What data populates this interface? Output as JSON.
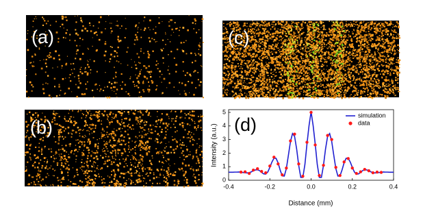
{
  "panels": [
    {
      "label": "(a)"
    },
    {
      "label": "(b)"
    },
    {
      "label": "(c)"
    }
  ],
  "chart_data": {
    "type": "line",
    "label": "(d)",
    "x_label": "Distance (mm)",
    "y_label": "Intensity (a.u.)",
    "xlim": [
      -0.4,
      0.4
    ],
    "xticks": [
      -0.4,
      -0.2,
      {
        "value": 0,
        "label": "0.0"
      },
      0.2,
      0.4
    ],
    "ylim": [
      0,
      5.2
    ],
    "yticks": [
      0,
      1,
      2,
      3,
      4,
      5
    ],
    "legend": "upper right",
    "series": [
      {
        "name": "simulation",
        "color": "#1f1fd0",
        "kind": "line",
        "x": [
          -0.4,
          -0.39,
          -0.38,
          -0.37,
          -0.36,
          -0.35,
          -0.34,
          -0.33,
          -0.32,
          -0.31,
          -0.3,
          -0.29,
          -0.28,
          -0.27,
          -0.26,
          -0.25,
          -0.24,
          -0.23,
          -0.22,
          -0.21,
          -0.2,
          -0.19,
          -0.18,
          -0.17,
          -0.16,
          -0.15,
          -0.14,
          -0.13,
          -0.12,
          -0.11,
          -0.1,
          -0.09,
          -0.08,
          -0.07,
          -0.06,
          -0.05,
          -0.04,
          -0.03,
          -0.02,
          -0.01,
          0,
          0.01,
          0.02,
          0.03,
          0.04,
          0.05,
          0.06,
          0.07,
          0.08,
          0.09,
          0.1,
          0.11,
          0.12,
          0.13,
          0.14,
          0.15,
          0.16,
          0.17,
          0.18,
          0.19,
          0.2,
          0.21,
          0.22,
          0.23,
          0.24,
          0.25,
          0.26,
          0.27,
          0.28,
          0.29,
          0.3,
          0.31,
          0.32,
          0.33,
          0.34,
          0.35,
          0.36,
          0.37,
          0.38,
          0.39,
          0.4
        ],
        "values": [
          0.59,
          0.59,
          0.59,
          0.6,
          0.6,
          0.61,
          0.59,
          0.57,
          0.55,
          0.54,
          0.56,
          0.62,
          0.7,
          0.76,
          0.77,
          0.71,
          0.58,
          0.47,
          0.45,
          0.61,
          0.95,
          1.34,
          1.62,
          1.62,
          1.28,
          0.75,
          0.32,
          0.31,
          0.86,
          1.84,
          2.86,
          3.44,
          3.23,
          2.3,
          1.09,
          0.21,
          0.21,
          1.16,
          2.67,
          4.02,
          5.05,
          4.02,
          2.67,
          1.16,
          0.21,
          0.21,
          1.09,
          2.3,
          3.23,
          3.44,
          2.86,
          1.84,
          0.86,
          0.31,
          0.32,
          0.75,
          1.28,
          1.62,
          1.62,
          1.34,
          0.95,
          0.61,
          0.45,
          0.47,
          0.58,
          0.71,
          0.77,
          0.76,
          0.7,
          0.62,
          0.56,
          0.54,
          0.55,
          0.57,
          0.59,
          0.61,
          0.6,
          0.6,
          0.59,
          0.59,
          0.59
        ]
      },
      {
        "name": "data",
        "color": "#ff1a1a",
        "kind": "scatter",
        "x": [
          -0.34,
          -0.32,
          -0.3,
          -0.28,
          -0.26,
          -0.24,
          -0.22,
          -0.2,
          -0.18,
          -0.16,
          -0.14,
          -0.12,
          -0.1,
          -0.08,
          -0.06,
          -0.04,
          -0.02,
          0,
          0.02,
          0.04,
          0.06,
          0.08,
          0.1,
          0.12,
          0.14,
          0.16,
          0.18,
          0.2,
          0.22,
          0.24,
          0.26,
          0.28,
          0.3,
          0.32,
          0.34
        ],
        "values": [
          0.6,
          0.62,
          0.5,
          0.75,
          0.85,
          0.65,
          0.55,
          1.05,
          1.7,
          1.2,
          0.4,
          0.9,
          2.9,
          3.4,
          1.2,
          0.3,
          2.8,
          5.0,
          2.6,
          0.35,
          1.1,
          3.3,
          3.0,
          0.95,
          0.35,
          1.35,
          1.6,
          0.9,
          0.5,
          0.62,
          0.8,
          0.7,
          0.55,
          0.6,
          0.58
        ]
      }
    ]
  }
}
